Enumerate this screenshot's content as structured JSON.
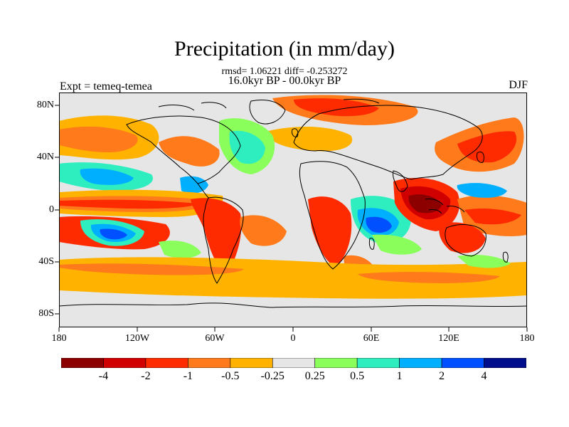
{
  "header": {
    "title": "Precipitation (in mm/day)",
    "stats": "rmsd= 1.06221 diff= -0.253272",
    "period": "16.0kyr BP - 00.0kyr BP",
    "experiment": "Expt = temeq-temea",
    "season": "DJF"
  },
  "axes": {
    "lat_labels": [
      "80N",
      "40N",
      "0",
      "40S",
      "80S"
    ],
    "lon_labels": [
      "180",
      "120W",
      "60W",
      "0",
      "60E",
      "120E",
      "180"
    ]
  },
  "colorbar": {
    "labels": [
      "-4",
      "-2",
      "-1",
      "-0.5",
      "-0.25",
      "0.25",
      "0.5",
      "1",
      "2",
      "4"
    ],
    "colors": [
      "#8c0000",
      "#d00000",
      "#ff2b00",
      "#ff7a1a",
      "#ffb300",
      "#e6e6e6",
      "#8aff5c",
      "#2eeec0",
      "#00b0ff",
      "#0050ff",
      "#000e8c"
    ]
  },
  "palette": {
    "neutral": "#e6e6e6",
    "coast": "#000000"
  }
}
